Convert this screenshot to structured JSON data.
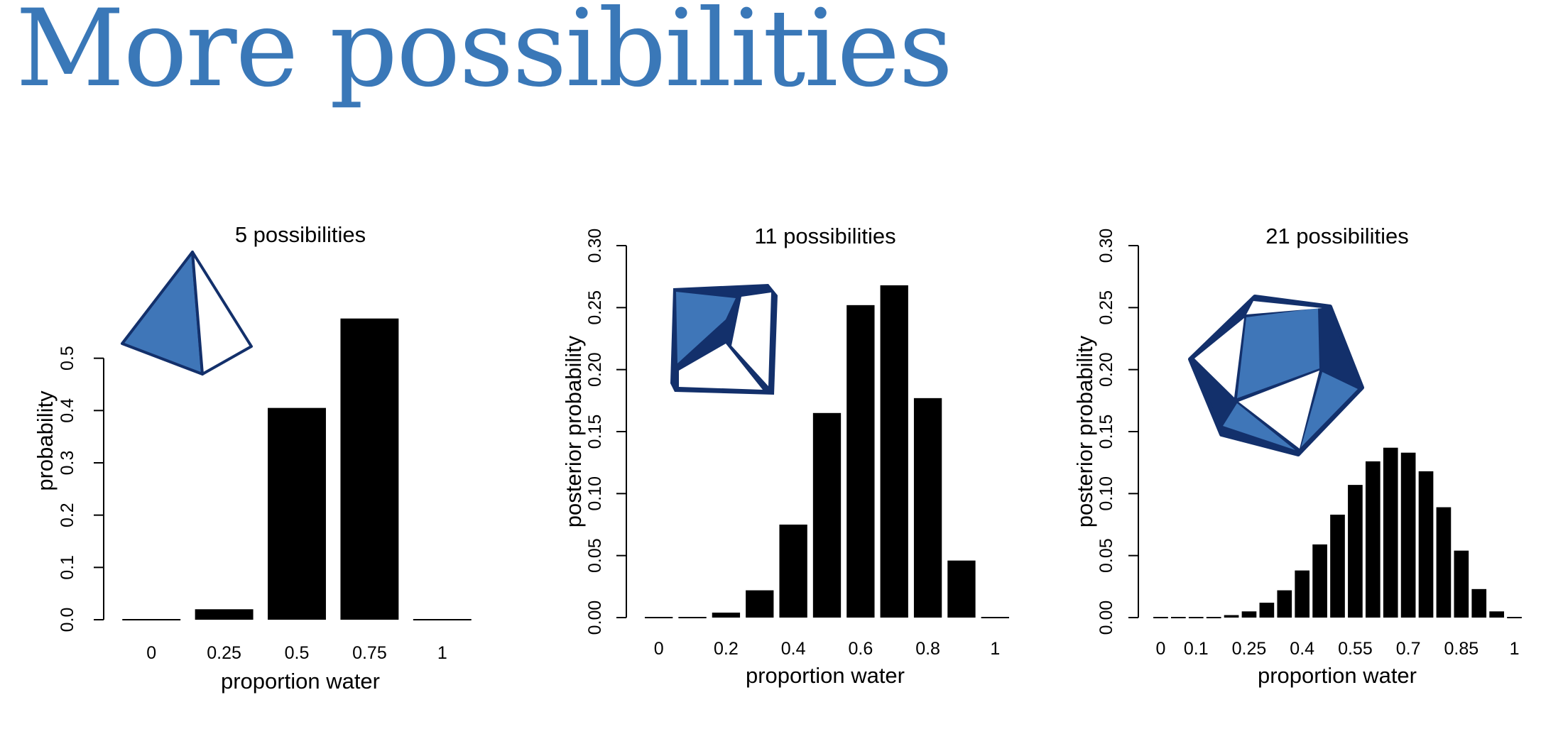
{
  "slide": {
    "title": "More possibilities"
  },
  "colors": {
    "title": "#3a78b8",
    "bar": "#000000",
    "die_blue": "#3f76b8",
    "die_navy": "#13306b"
  },
  "chart_data": [
    {
      "type": "bar",
      "title": "5 possibilities",
      "xlabel": "proportion water",
      "ylabel": "probability",
      "categories": [
        "0",
        "0.25",
        "0.5",
        "0.75",
        "1"
      ],
      "values": [
        0.0,
        0.02,
        0.405,
        0.576,
        0.0
      ],
      "ylim": [
        0,
        0.6
      ],
      "yticks": [
        "0.0",
        "0.1",
        "0.2",
        "0.3",
        "0.4",
        "0.5"
      ],
      "xtick_labels": [
        "0",
        "0.25",
        "0.5",
        "0.75",
        "1"
      ],
      "icon": "tetrahedron-die-icon"
    },
    {
      "type": "bar",
      "title": "11 possibilities",
      "xlabel": "proportion water",
      "ylabel": "posterior probability",
      "categories": [
        "0",
        "0.1",
        "0.2",
        "0.3",
        "0.4",
        "0.5",
        "0.6",
        "0.7",
        "0.8",
        "0.9",
        "1"
      ],
      "values": [
        0.0,
        0.0,
        0.004,
        0.022,
        0.075,
        0.165,
        0.252,
        0.268,
        0.177,
        0.046,
        0.0
      ],
      "ylim": [
        0,
        0.3
      ],
      "yticks": [
        "0.00",
        "0.05",
        "0.10",
        "0.15",
        "0.20",
        "0.25",
        "0.30"
      ],
      "xtick_labels": [
        "0",
        "0.2",
        "0.4",
        "0.6",
        "0.8",
        "1"
      ],
      "icon": "ten-sided-die-icon"
    },
    {
      "type": "bar",
      "title": "21 possibilities",
      "xlabel": "proportion water",
      "ylabel": "posterior probability",
      "categories": [
        "0",
        "0.05",
        "0.1",
        "0.15",
        "0.2",
        "0.25",
        "0.3",
        "0.35",
        "0.4",
        "0.45",
        "0.5",
        "0.55",
        "0.6",
        "0.65",
        "0.7",
        "0.75",
        "0.8",
        "0.85",
        "0.9",
        "0.95",
        "1"
      ],
      "values": [
        0.0,
        0.0,
        0.0,
        0.0,
        0.002,
        0.005,
        0.012,
        0.022,
        0.038,
        0.059,
        0.083,
        0.107,
        0.126,
        0.137,
        0.133,
        0.118,
        0.089,
        0.054,
        0.023,
        0.005,
        0.0
      ],
      "ylim": [
        0,
        0.3
      ],
      "yticks": [
        "0.00",
        "0.05",
        "0.10",
        "0.15",
        "0.20",
        "0.25",
        "0.30"
      ],
      "xtick_labels": [
        "0",
        "0.1",
        "0.25",
        "0.4",
        "0.55",
        "0.7",
        "0.85",
        "1"
      ],
      "icon": "twenty-sided-die-icon"
    }
  ]
}
